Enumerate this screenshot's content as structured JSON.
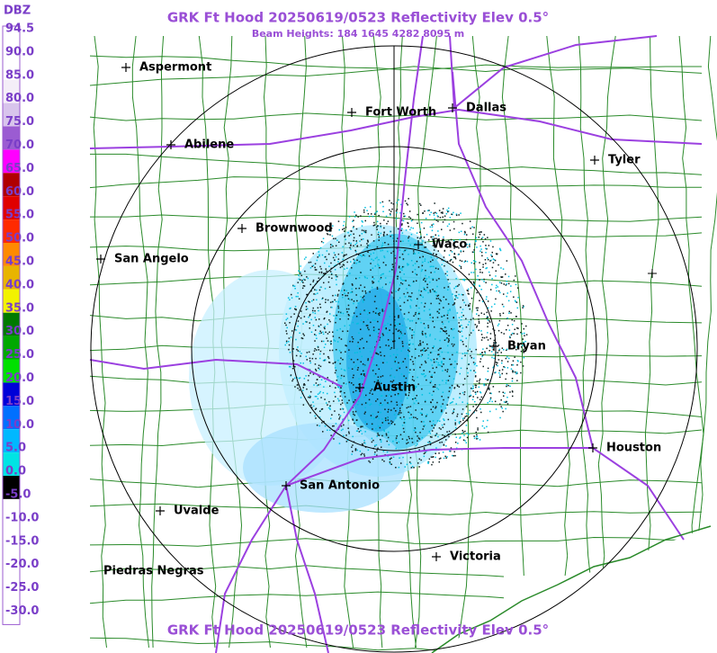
{
  "header": {
    "unit_label": "DBZ",
    "title": "GRK Ft Hood 20250619/0523 Reflectivity Elev 0.5°",
    "subtitle": "Beam Heights: 184 1645 4282 8095 m"
  },
  "legend": [
    {
      "label": "94.5",
      "color": "#ffffff"
    },
    {
      "label": "90.0",
      "color": "#ffffff"
    },
    {
      "label": "85.0",
      "color": "#ffffff"
    },
    {
      "label": "80.0",
      "color": "#f4eef8"
    },
    {
      "label": "75.0",
      "color": "#d8c4ec"
    },
    {
      "label": "70.0",
      "color": "#9b5cd2"
    },
    {
      "label": "65.0",
      "color": "#ff00ff"
    },
    {
      "label": "60.0",
      "color": "#b00000"
    },
    {
      "label": "55.0",
      "color": "#e00000"
    },
    {
      "label": "50.0",
      "color": "#ff2a00"
    },
    {
      "label": "45.0",
      "color": "#ff8a00"
    },
    {
      "label": "40.0",
      "color": "#e8b400"
    },
    {
      "label": "35.0",
      "color": "#f2f200"
    },
    {
      "label": "30.0",
      "color": "#007a00"
    },
    {
      "label": "25.0",
      "color": "#00a800"
    },
    {
      "label": "20.0",
      "color": "#00e000"
    },
    {
      "label": "15.0",
      "color": "#0000d8"
    },
    {
      "label": "10.0",
      "color": "#0070ff"
    },
    {
      "label": "5.0",
      "color": "#00b8ff"
    },
    {
      "label": "0.0",
      "color": "#00e4e4"
    },
    {
      "label": "-5.0",
      "color": "#000000"
    },
    {
      "label": "-10.0",
      "color": "#ffffff"
    },
    {
      "label": "-15.0",
      "color": "#ffffff"
    },
    {
      "label": "-20.0",
      "color": "#ffffff"
    },
    {
      "label": "-25.0",
      "color": "#ffffff"
    },
    {
      "label": "-30.0",
      "color": "#ffffff"
    }
  ],
  "cities": [
    {
      "label": "Aspermont"
    },
    {
      "label": "Abilene"
    },
    {
      "label": "Fort Worth"
    },
    {
      "label": "Dallas"
    },
    {
      "label": "Tyler"
    },
    {
      "label": "Brownwood"
    },
    {
      "label": "San Angelo"
    },
    {
      "label": "Waco"
    },
    {
      "label": "Bryan"
    },
    {
      "label": "Austin"
    },
    {
      "label": "Houston"
    },
    {
      "label": "San Antonio"
    },
    {
      "label": "Uvalde"
    },
    {
      "label": "Victoria"
    },
    {
      "label": "Piedras Negras"
    }
  ],
  "footer": {
    "title": "GRK Ft Hood 20250619/0523 Reflectivity Elev 0.5°"
  }
}
